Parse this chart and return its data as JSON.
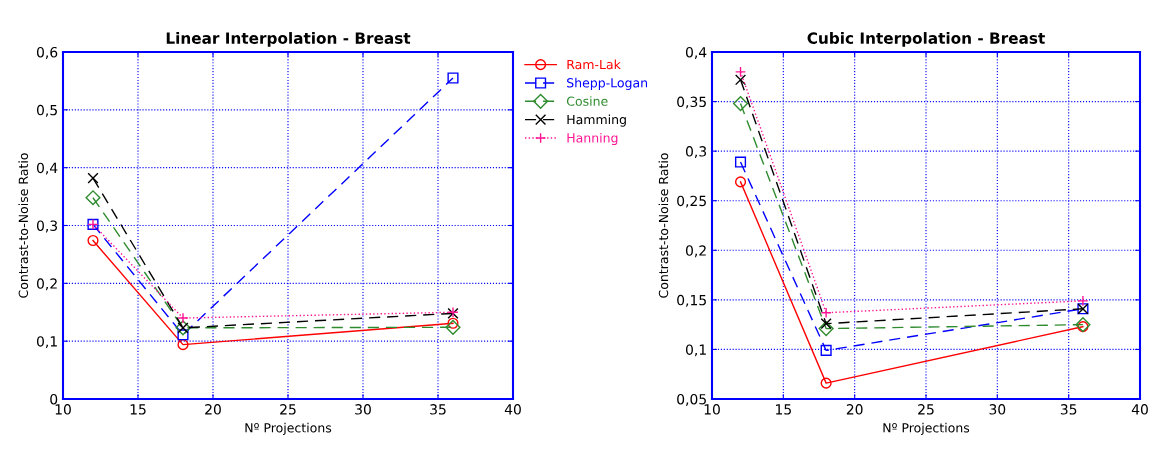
{
  "chart_data": [
    {
      "type": "line",
      "title": "Linear Interpolation - Breast",
      "xlabel": "Nº Projections",
      "ylabel": "Contrast-to-Noise Ratio",
      "x": [
        12,
        18,
        36
      ],
      "series": [
        {
          "name": "Ram-Lak",
          "color": "#ff0000",
          "marker": "circle",
          "line_style": "solid",
          "values": [
            0.274,
            0.094,
            0.131
          ]
        },
        {
          "name": "Shepp-Logan",
          "color": "#0000ff",
          "marker": "square",
          "line_style": "dashed",
          "values": [
            0.302,
            0.111,
            0.555
          ]
        },
        {
          "name": "Cosine",
          "color": "#2e8b2e",
          "marker": "diamond",
          "line_style": "dashed",
          "values": [
            0.348,
            0.123,
            0.124
          ]
        },
        {
          "name": "Hamming",
          "color": "#000000",
          "marker": "cross",
          "line_style": "dashed",
          "values": [
            0.382,
            0.123,
            0.148
          ]
        },
        {
          "name": "Hanning",
          "color": "#ff1493",
          "marker": "plus",
          "line_style": "dotted",
          "values": [
            0.302,
            0.14,
            0.15
          ]
        }
      ],
      "xlim": [
        10,
        40
      ],
      "xticks": [
        10,
        15,
        20,
        25,
        30,
        35,
        40
      ],
      "ylim": [
        0,
        0.6
      ],
      "yticks": [
        0,
        {
          "value": 0.1,
          "label": "0,1"
        },
        {
          "value": 0.2,
          "label": "0,2"
        },
        {
          "value": 0.3,
          "label": "0,3"
        },
        {
          "value": 0.4,
          "label": "0,4"
        },
        {
          "value": 0.5,
          "label": "0,5"
        },
        {
          "value": 0.6,
          "label": "0,6"
        }
      ],
      "grid": true,
      "legend": "right"
    },
    {
      "type": "line",
      "title": "Cubic Interpolation - Breast",
      "xlabel": "Nº Projections",
      "ylabel": "Contrast-to-Noise Ratio",
      "x": [
        12,
        18,
        36
      ],
      "series": [
        {
          "color": "#ff0000",
          "marker": "circle",
          "line_style": "solid",
          "values": [
            0.269,
            0.066,
            0.123
          ]
        },
        {
          "color": "#0000ff",
          "marker": "square",
          "line_style": "dashed",
          "values": [
            0.289,
            0.099,
            0.141
          ]
        },
        {
          "color": "#2e8b2e",
          "marker": "diamond",
          "line_style": "dashed",
          "values": [
            0.348,
            0.121,
            0.125
          ]
        },
        {
          "color": "#000000",
          "marker": "cross",
          "line_style": "dashed",
          "values": [
            0.372,
            0.126,
            0.141
          ]
        },
        {
          "color": "#ff1493",
          "marker": "plus",
          "line_style": "dotted",
          "values": [
            0.38,
            0.137,
            0.149
          ]
        }
      ],
      "xlim": [
        10,
        40
      ],
      "xticks": [
        10,
        15,
        20,
        25,
        30,
        35,
        40
      ],
      "ylim": [
        0.05,
        0.4
      ],
      "yticks": [
        {
          "value": 0.05,
          "label": "0,05"
        },
        {
          "value": 0.1,
          "label": "0,1"
        },
        {
          "value": 0.15,
          "label": "0,15"
        },
        {
          "value": 0.2,
          "label": "0,2"
        },
        {
          "value": 0.25,
          "label": "0,25"
        },
        {
          "value": 0.3,
          "label": "0,3"
        },
        {
          "value": 0.35,
          "label": "0,35"
        },
        {
          "value": 0.4,
          "label": "0,4"
        }
      ],
      "grid": true,
      "legend": false
    }
  ]
}
